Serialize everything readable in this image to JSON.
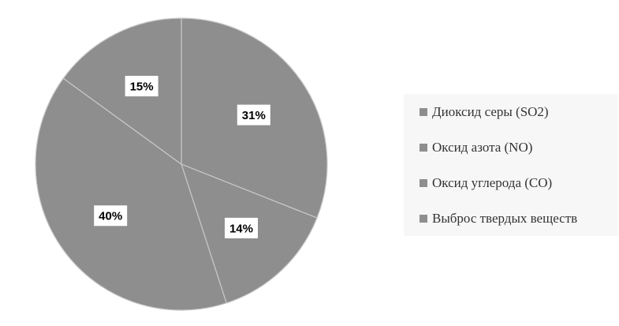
{
  "chart_data": {
    "type": "pie",
    "categories": [
      "Диоксид серы (SO2)",
      "Оксид азота (NO)",
      "Оксид углерода (CO)",
      "Выброс твердых веществ"
    ],
    "values": [
      31,
      14,
      40,
      15
    ],
    "data_labels": [
      "31%",
      "14%",
      "40%",
      "15%"
    ],
    "colors": [
      "#8e8e8e",
      "#8e8e8e",
      "#8e8e8e",
      "#8e8e8e"
    ],
    "legend_position": "right",
    "start_angle_deg": 0,
    "direction": "clockwise"
  },
  "legend": {
    "items": [
      {
        "label": "Диоксид серы (SO2)",
        "color": "#8e8e8e"
      },
      {
        "label": "Оксид азота (NO)",
        "color": "#8e8e8e"
      },
      {
        "label": "Оксид углерода (CO)",
        "color": "#8e8e8e"
      },
      {
        "label": "Выброс твердых веществ",
        "color": "#8e8e8e"
      }
    ]
  }
}
